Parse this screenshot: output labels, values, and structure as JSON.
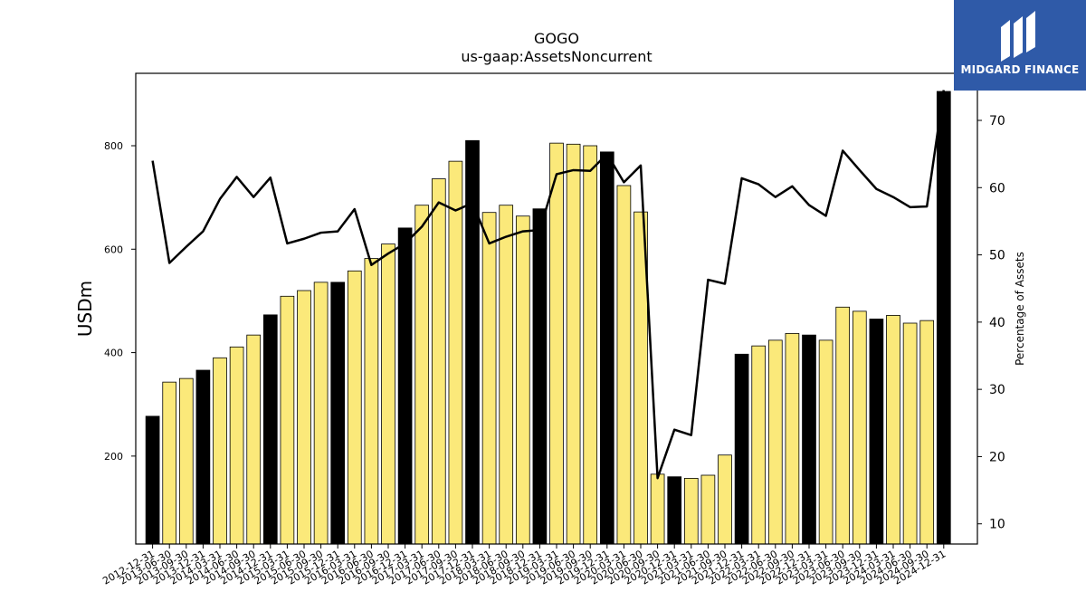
{
  "logo": {
    "text": "MIDGARD FINANCE",
    "icon": "midgard-logo-icon",
    "background": "#2f5aa8"
  },
  "chart_data": {
    "type": "bar",
    "title": "GOGO",
    "subtitle": "us-gaap:AssetsNoncurrent",
    "ylabel": "USDm",
    "y2label": "Percentage of Assets",
    "ylim": [
      30,
      940
    ],
    "y2lim": [
      7,
      77
    ],
    "yticks": [
      200,
      400,
      600,
      800
    ],
    "y2ticks": [
      10,
      20,
      30,
      40,
      50,
      60,
      70
    ],
    "grid": false,
    "colors": {
      "annual_bar": "#000000",
      "quarter_bar": "#fbe97a",
      "line": "#000000"
    },
    "categories": [
      "2012-12-31",
      "2013-06-30",
      "2013-09-30",
      "2013-12-31",
      "2014-03-31",
      "2014-06-30",
      "2014-09-30",
      "2014-12-31",
      "2015-03-31",
      "2015-06-30",
      "2015-09-30",
      "2015-12-31",
      "2016-03-31",
      "2016-06-30",
      "2016-09-30",
      "2016-12-31",
      "2017-03-31",
      "2017-06-30",
      "2017-09-30",
      "2017-12-31",
      "2018-03-31",
      "2018-06-30",
      "2018-09-30",
      "2018-12-31",
      "2019-03-31",
      "2019-06-30",
      "2019-09-30",
      "2019-12-31",
      "2020-03-31",
      "2020-06-30",
      "2020-09-30",
      "2020-12-31",
      "2021-03-31",
      "2021-06-30",
      "2021-09-30",
      "2021-12-31",
      "2022-03-31",
      "2022-06-30",
      "2022-09-30",
      "2022-12-31",
      "2023-03-31",
      "2023-06-30",
      "2023-09-30",
      "2023-12-31",
      "2024-03-31",
      "2024-06-30",
      "2024-09-30",
      "2024-12-31"
    ],
    "series": [
      {
        "kind": "bar",
        "values": [
          277,
          343,
          350,
          366,
          390,
          411,
          434,
          473,
          509,
          520,
          536,
          536,
          558,
          582,
          610,
          641,
          685,
          736,
          770,
          810,
          671,
          685,
          664,
          678,
          805,
          803,
          800,
          788,
          723,
          672,
          165,
          160,
          157,
          163,
          202,
          397,
          413,
          424,
          437,
          434,
          424,
          488,
          480,
          465,
          472,
          457,
          462,
          905
        ],
        "annual": [
          true,
          false,
          false,
          true,
          false,
          false,
          false,
          true,
          false,
          false,
          false,
          true,
          false,
          false,
          false,
          true,
          false,
          false,
          false,
          true,
          false,
          false,
          false,
          true,
          false,
          false,
          false,
          true,
          false,
          false,
          false,
          true,
          false,
          false,
          false,
          true,
          false,
          false,
          false,
          true,
          false,
          false,
          false,
          true,
          false,
          false,
          false,
          true
        ]
      },
      {
        "kind": "line",
        "axis": "right",
        "values": [
          64.0,
          48.8,
          51.2,
          53.5,
          58.3,
          61.6,
          58.6,
          61.5,
          51.7,
          52.4,
          53.3,
          53.5,
          56.8,
          48.5,
          50.2,
          51.7,
          54.2,
          57.8,
          56.6,
          57.7,
          51.7,
          52.7,
          53.5,
          53.7,
          62.0,
          62.6,
          62.5,
          65.0,
          60.8,
          63.3,
          16.8,
          24.0,
          23.2,
          46.3,
          45.7,
          61.4,
          60.5,
          58.6,
          60.2,
          57.4,
          55.8,
          65.5,
          62.6,
          59.8,
          58.6,
          57.1,
          57.2,
          74.5
        ]
      }
    ]
  }
}
